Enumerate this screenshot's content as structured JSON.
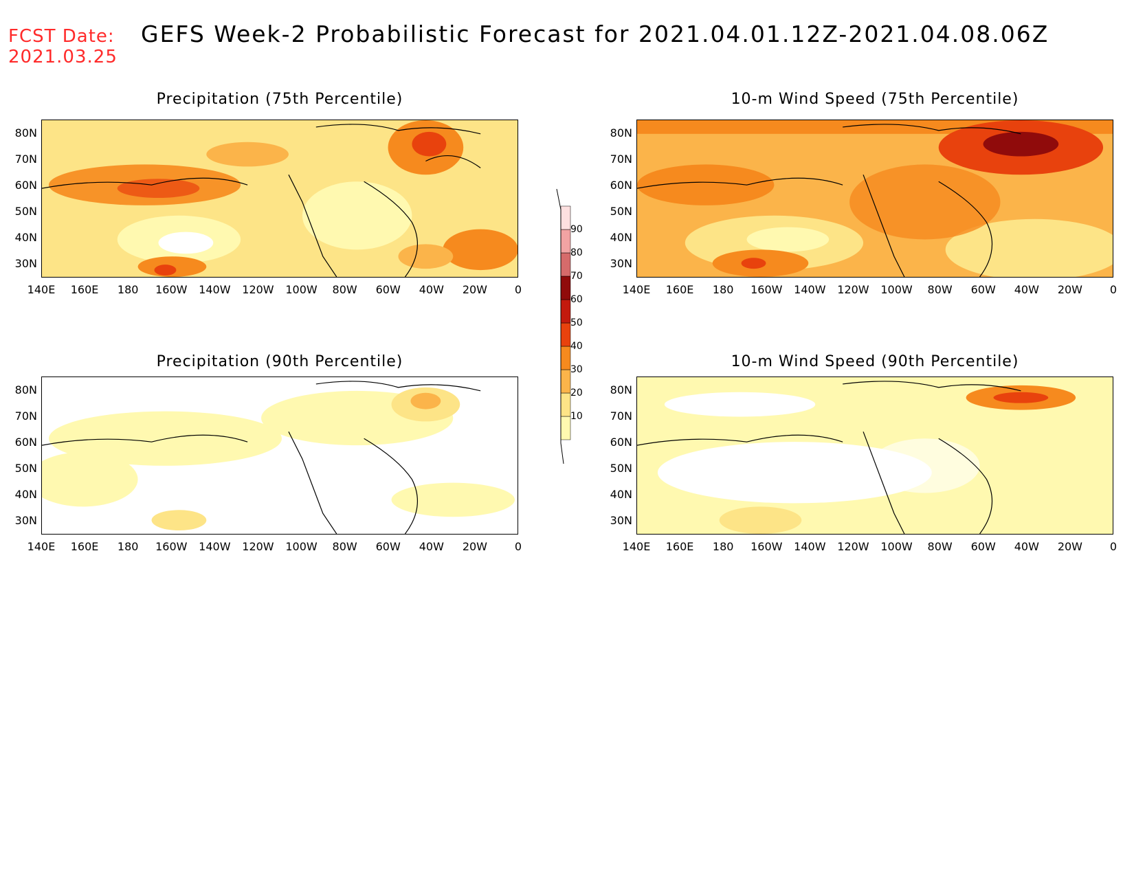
{
  "header": {
    "fcst_label": "FCST Date:",
    "fcst_date": "2021.03.25",
    "title": "GEFS Week-2 Probabilistic Forecast for 2021.04.01.12Z-2021.04.08.06Z"
  },
  "panels": [
    {
      "id": "precip-75",
      "title": "Precipitation (75th Percentile)"
    },
    {
      "id": "wind-75",
      "title": "10-m Wind Speed (75th Percentile)"
    },
    {
      "id": "precip-90",
      "title": "Precipitation (90th Percentile)"
    },
    {
      "id": "wind-90",
      "title": "10-m Wind Speed (90th Percentile)"
    }
  ],
  "axes": {
    "lat_labels": [
      "80N",
      "70N",
      "60N",
      "50N",
      "40N",
      "30N"
    ],
    "lon_labels": [
      "140E",
      "160E",
      "180",
      "160W",
      "140W",
      "120W",
      "100W",
      "80W",
      "60W",
      "40W",
      "20W",
      "0"
    ]
  },
  "colorbar": {
    "labels": [
      "10",
      "20",
      "30",
      "40",
      "50",
      "60",
      "70",
      "80",
      "90"
    ],
    "colors": [
      "#fff9b0",
      "#fde487",
      "#fbb44a",
      "#f68a1e",
      "#e8420d",
      "#c31a0d",
      "#900b0b",
      "#d66b6b",
      "#f2a3a3",
      "#fde0e0"
    ]
  }
}
